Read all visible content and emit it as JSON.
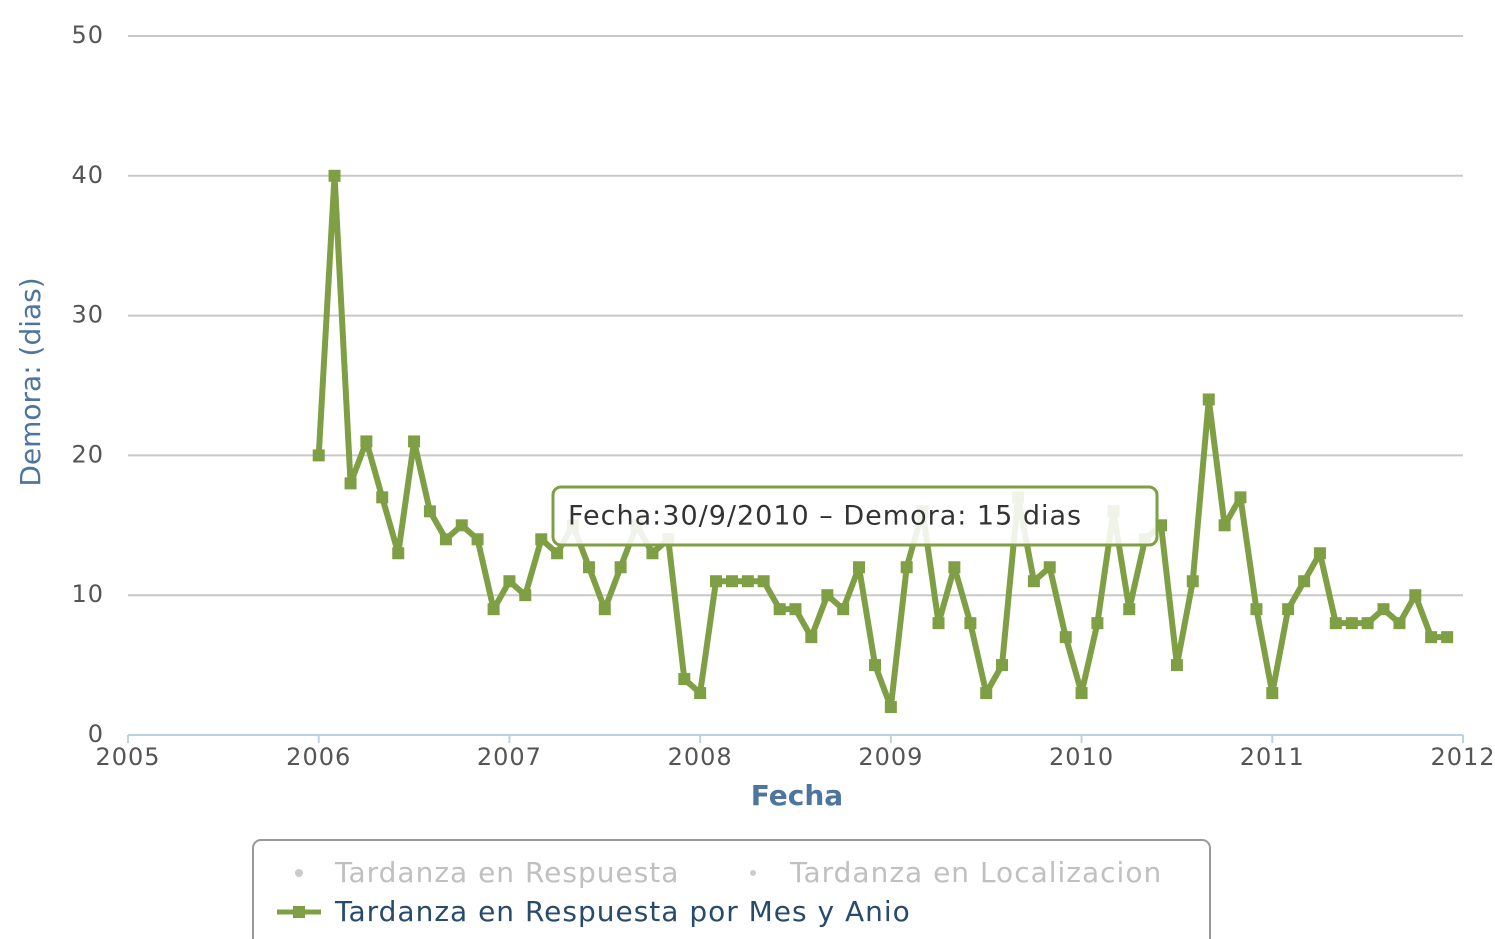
{
  "chart_data": {
    "type": "line",
    "y_axis_label": "Demora: (dias)",
    "x_axis_label": "Fecha",
    "tooltip": "Fecha:30/9/2010 – Demora: 15 dias",
    "legend_hidden": [
      "Tardanza en Respuesta",
      "Tardanza en Localizacion"
    ],
    "x": [
      2006,
      2006.083,
      2006.167,
      2006.25,
      2006.333,
      2006.417,
      2006.5,
      2006.583,
      2006.667,
      2006.75,
      2006.833,
      2006.917,
      2007,
      2007.083,
      2007.167,
      2007.25,
      2007.333,
      2007.417,
      2007.5,
      2007.583,
      2007.667,
      2007.75,
      2007.833,
      2007.917,
      2008,
      2008.083,
      2008.167,
      2008.25,
      2008.333,
      2008.417,
      2008.5,
      2008.583,
      2008.667,
      2008.75,
      2008.833,
      2008.917,
      2009,
      2009.083,
      2009.167,
      2009.25,
      2009.333,
      2009.417,
      2009.5,
      2009.583,
      2009.667,
      2009.75,
      2009.833,
      2009.917,
      2010,
      2010.083,
      2010.167,
      2010.25,
      2010.333,
      2010.417,
      2010.5,
      2010.583,
      2010.667,
      2010.75,
      2010.833,
      2010.917,
      2011,
      2011.083,
      2011.167,
      2011.25,
      2011.333,
      2011.417,
      2011.5,
      2011.583,
      2011.667,
      2011.75,
      2011.833,
      2011.917
    ],
    "series": [
      {
        "name": "Tardanza en Respuesta por Mes y Anio",
        "color": "#7f9f45",
        "values": [
          20,
          40,
          18,
          21,
          17,
          13,
          21,
          16,
          14,
          15,
          14,
          9,
          11,
          10,
          14,
          13,
          15,
          12,
          9,
          12,
          15,
          13,
          14,
          4,
          3,
          11,
          11,
          11,
          11,
          9,
          9,
          7,
          10,
          9,
          12,
          5,
          2,
          12,
          16,
          8,
          12,
          8,
          3,
          5,
          17,
          11,
          12,
          7,
          3,
          8,
          16,
          9,
          14,
          15,
          5,
          11,
          24,
          15,
          17,
          9,
          3,
          9,
          11,
          13,
          8,
          8,
          8,
          9,
          8,
          10,
          7,
          7
        ]
      }
    ],
    "xlim": [
      2005,
      2012
    ],
    "xticks": [
      2005,
      2006,
      2007,
      2008,
      2009,
      2010,
      2011,
      2012
    ],
    "ylim": [
      0,
      50
    ],
    "yticks": [
      0,
      10,
      20,
      30,
      40,
      50
    ],
    "grid": true
  }
}
